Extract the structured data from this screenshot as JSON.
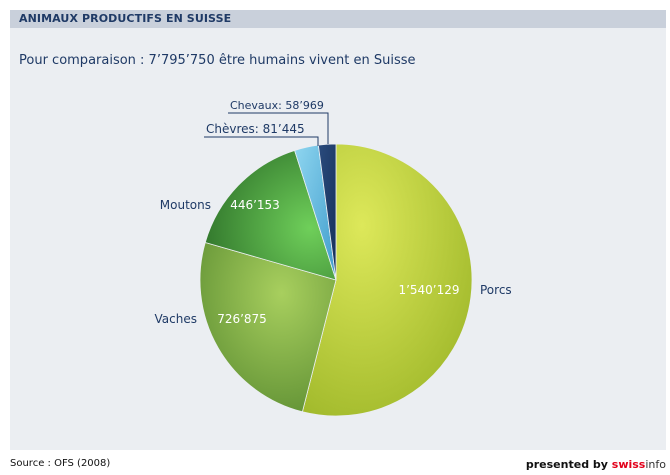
{
  "header": {
    "title": "ANIMAUX PRODUCTIFS EN SUISSE"
  },
  "subtitle": "Pour comparaison : 7’795’750 être humains vivent en Suisse",
  "footer": {
    "source": "Source : OFS (2008)",
    "presented_prefix": "presented by ",
    "brand_swiss": "swiss",
    "brand_info": "info"
  },
  "colors": {
    "porcs": "#b7cc33",
    "vaches": "#8fb445",
    "moutons": "#4f9a3c",
    "chevres": "#6fc3e6",
    "chevaux": "#1f3a66",
    "text": "#1f3a66"
  },
  "chart_data": {
    "type": "pie",
    "title": "ANIMAUX PRODUCTIFS EN SUISSE",
    "slices": [
      {
        "name": "Porcs",
        "value": 1540129,
        "label": "1’540’129"
      },
      {
        "name": "Vaches",
        "value": 726875,
        "label": "726’875"
      },
      {
        "name": "Moutons",
        "value": 446153,
        "label": "446’153"
      },
      {
        "name": "Chèvres",
        "value": 81445,
        "label": "81’445"
      },
      {
        "name": "Chevaux",
        "value": 58969,
        "label": "58’969"
      }
    ]
  }
}
